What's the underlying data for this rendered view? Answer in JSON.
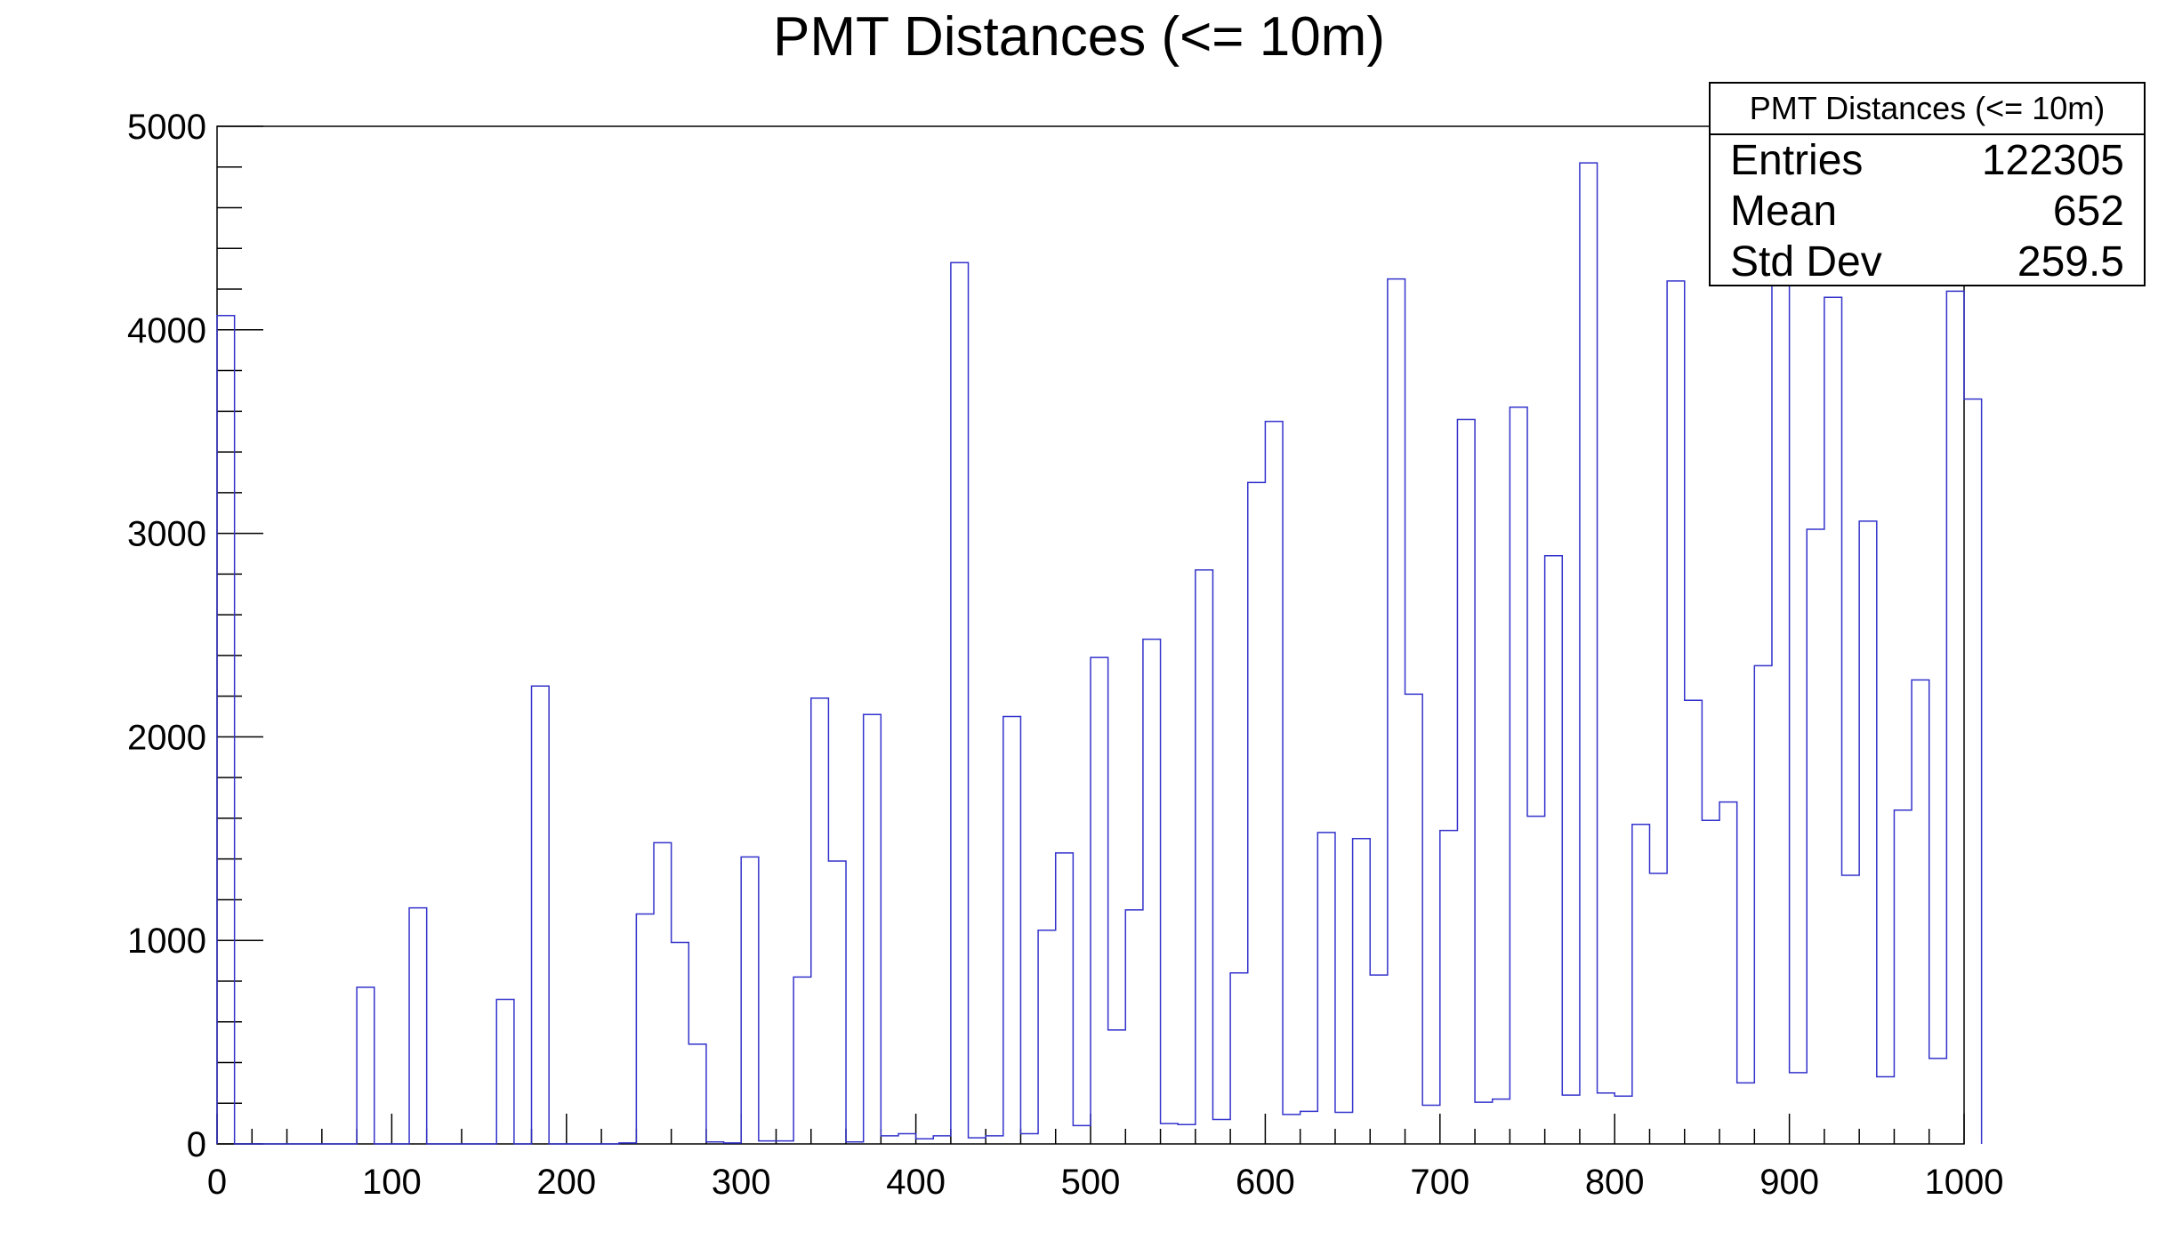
{
  "chart_data": {
    "type": "bar",
    "style": "step-histogram",
    "title": "PMT Distances (<= 10m)",
    "xlabel": "",
    "ylabel": "",
    "xlim": [
      0,
      1000
    ],
    "ylim": [
      0,
      5000
    ],
    "x_ticks": [
      0,
      100,
      200,
      300,
      400,
      500,
      600,
      700,
      800,
      900,
      1000
    ],
    "y_ticks": [
      0,
      1000,
      2000,
      3000,
      4000,
      5000
    ],
    "bin_width": 10,
    "line_color": "#3333cc",
    "frame_color": "#000000",
    "grid": false,
    "legend": "none",
    "values": [
      4070,
      0,
      0,
      0,
      0,
      0,
      0,
      0,
      770,
      0,
      0,
      1160,
      0,
      0,
      0,
      0,
      710,
      0,
      2250,
      0,
      0,
      0,
      0,
      5,
      1130,
      1480,
      990,
      490,
      10,
      5,
      1410,
      15,
      15,
      820,
      2190,
      1390,
      10,
      2110,
      40,
      50,
      25,
      40,
      4330,
      30,
      40,
      2100,
      50,
      1050,
      1430,
      90,
      2390,
      560,
      1150,
      2480,
      100,
      95,
      2820,
      120,
      840,
      3250,
      3550,
      145,
      160,
      1530,
      155,
      1500,
      830,
      4250,
      2210,
      190,
      1540,
      3560,
      205,
      220,
      3620,
      1610,
      2890,
      240,
      4820,
      250,
      235,
      1570,
      1330,
      4240,
      2180,
      1590,
      1680,
      300,
      2350,
      4300,
      350,
      3020,
      4160,
      1320,
      3060,
      330,
      1640,
      2280,
      420,
      4190,
      3660
    ]
  },
  "stats": {
    "title": "PMT Distances (<= 10m)",
    "rows": [
      {
        "key": "Entries",
        "value": "122305"
      },
      {
        "key": "Mean",
        "value": "652"
      },
      {
        "key": "Std Dev",
        "value": "259.5"
      }
    ]
  }
}
